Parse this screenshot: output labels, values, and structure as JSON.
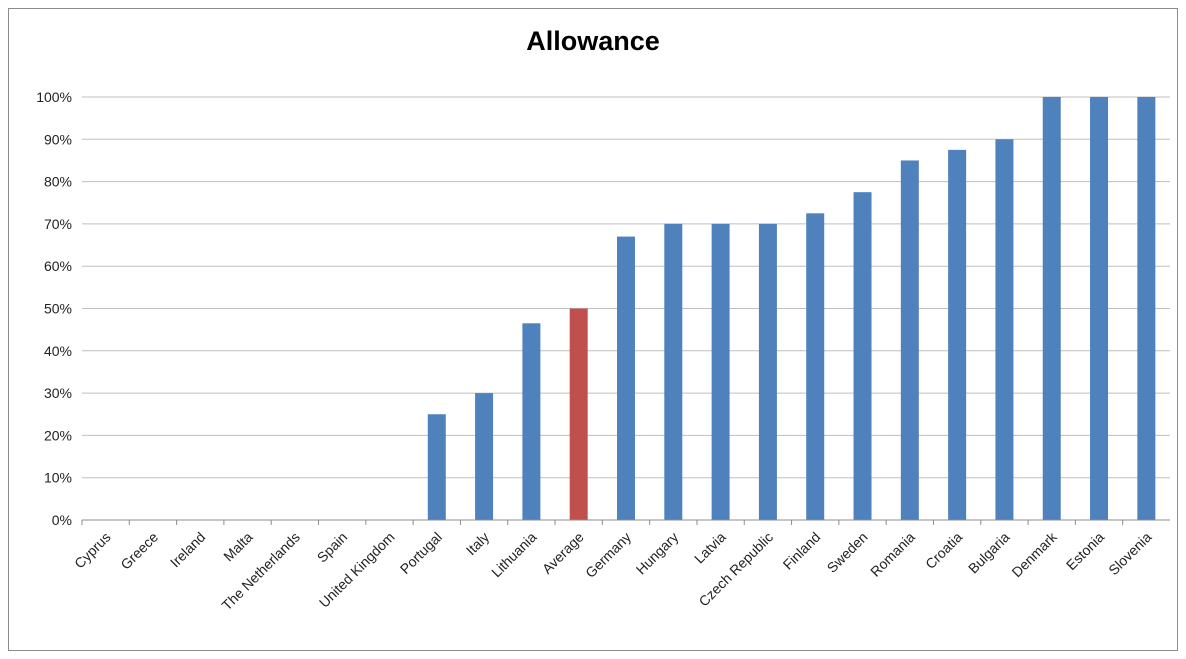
{
  "chart_data": {
    "type": "bar",
    "title": "Allowance",
    "xlabel": "",
    "ylabel": "",
    "ylim": [
      0,
      100
    ],
    "y_ticks": [
      "0%",
      "10%",
      "20%",
      "30%",
      "40%",
      "50%",
      "60%",
      "70%",
      "80%",
      "90%",
      "100%"
    ],
    "grid": true,
    "legend": "none",
    "categories": [
      "Cyprus",
      "Greece",
      "Ireland",
      "Malta",
      "The Netherlands",
      "Spain",
      "United Kingdom",
      "Portugal",
      "Italy",
      "Lithuania",
      "Average",
      "Germany",
      "Hungary",
      "Latvia",
      "Czech Republic",
      "Finland",
      "Sweden",
      "Romania",
      "Croatia",
      "Bulgaria",
      "Denmark",
      "Estonia",
      "Slovenia"
    ],
    "values": [
      0,
      0,
      0,
      0,
      0,
      0,
      0,
      25,
      30,
      46.5,
      50,
      67,
      70,
      70,
      70,
      72.5,
      77.5,
      85,
      87.5,
      90,
      100,
      100,
      100
    ],
    "colors": {
      "default": "#4f81bd",
      "highlight": "#c0504d",
      "highlight_category": "Average",
      "grid": "#bfbfbf",
      "axis": "#8c8c8c"
    }
  }
}
